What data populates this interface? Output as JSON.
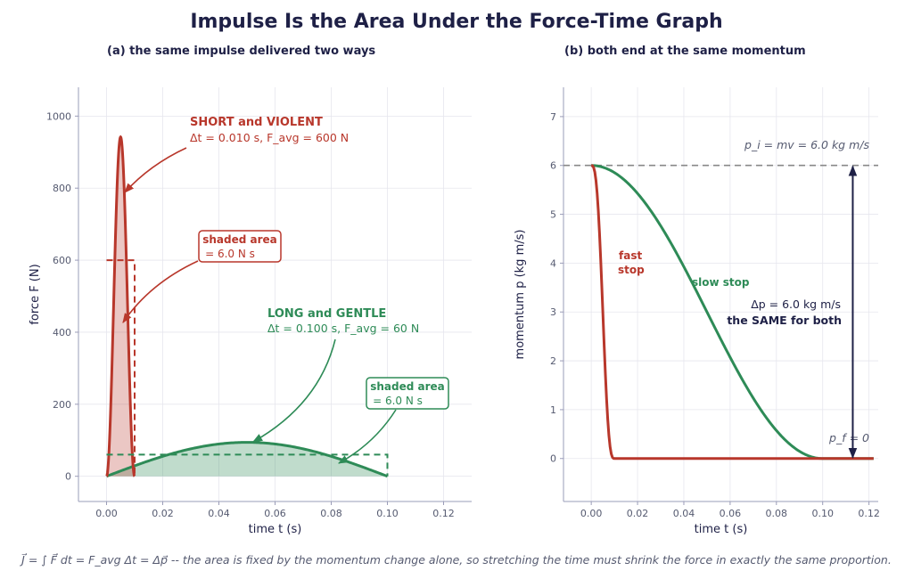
{
  "figure": {
    "title": "Impulse Is the Area Under the Force-Time Graph",
    "caption": "J⃗ = ∫ F⃗ dt = F_avg Δt = Δp⃗ -- the area is fixed by the momentum change alone, so stretching the time must shrink the force in exactly the same proportion."
  },
  "colors": {
    "short": "#b8372b",
    "long": "#2e8b57",
    "dark": "#1e2046",
    "grid": "#e6e6ee",
    "dashed_ref": "#888888"
  },
  "chart_data": [
    {
      "type": "area",
      "title": "(a)  the same impulse delivered two ways",
      "xlabel": "time  t  (s)",
      "ylabel": "force  F  (N)",
      "xlim": [
        -0.01,
        0.13
      ],
      "ylim": [
        -70,
        1080
      ],
      "xticks": [
        0.0,
        0.02,
        0.04,
        0.06,
        0.08,
        0.1,
        0.12
      ],
      "xtick_labels": [
        "0.00",
        "0.02",
        "0.04",
        "0.06",
        "0.08",
        "0.10",
        "0.12"
      ],
      "yticks": [
        0,
        200,
        400,
        600,
        800,
        1000
      ],
      "ytick_labels": [
        "0",
        "200",
        "400",
        "600",
        "800",
        "1000"
      ],
      "grid": true,
      "series": [
        {
          "key": "short",
          "shape": "sin^2 pulse",
          "t_start": 0.0,
          "t_end": 0.01,
          "peak": 942,
          "favg": 600,
          "dt": 0.01,
          "impulse": 6.0
        },
        {
          "key": "long",
          "shape": "sin pulse",
          "t_start": 0.0,
          "t_end": 0.1,
          "peak": 94.2,
          "favg": 60,
          "dt": 0.1,
          "impulse": 6.0
        }
      ],
      "annotations": {
        "short_title": "SHORT and VIOLENT",
        "short_detail": "Δt = 0.010 s,  F_avg = 600 N",
        "short_area": [
          "shaded area",
          "= 6.0 N s"
        ],
        "long_title": "LONG and GENTLE",
        "long_detail": "Δt = 0.100 s,  F_avg = 60 N",
        "long_area": [
          "shaded area",
          "= 6.0 N s"
        ]
      }
    },
    {
      "type": "line",
      "title": "(b)  both end at the same momentum",
      "xlabel": "time  t  (s)",
      "ylabel": "momentum  p  (kg m/s)",
      "xlim": [
        -0.012,
        0.124
      ],
      "ylim": [
        -0.88,
        7.6
      ],
      "xticks": [
        0.0,
        0.02,
        0.04,
        0.06,
        0.08,
        0.1,
        0.12
      ],
      "xtick_labels": [
        "0.00",
        "0.02",
        "0.04",
        "0.06",
        "0.08",
        "0.10",
        "0.12"
      ],
      "yticks": [
        0,
        1,
        2,
        3,
        4,
        5,
        6,
        7
      ],
      "ytick_labels": [
        "0",
        "1",
        "2",
        "3",
        "4",
        "5",
        "6",
        "7"
      ],
      "grid": true,
      "series": [
        {
          "key": "short",
          "name": "fast stop",
          "p_initial": 6.0,
          "t_stop": 0.01,
          "t_end": 0.122
        },
        {
          "key": "long",
          "name": "slow stop",
          "p_initial": 6.0,
          "t_stop": 0.1,
          "t_end": 0.122
        }
      ],
      "annotations": {
        "fast_label": [
          "fast",
          "stop"
        ],
        "slow_label": "slow stop",
        "pi_label": "p_i = mv = 6.0 kg m/s",
        "pf_label": "p_f = 0",
        "delta_label": "Δp = 6.0 kg m/s",
        "same_label": "the SAME for both",
        "p_initial": 6.0,
        "arrow_t": 0.113
      }
    }
  ]
}
